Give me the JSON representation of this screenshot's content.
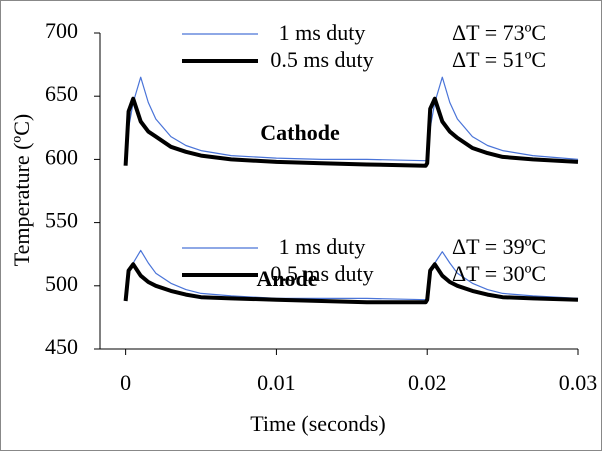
{
  "chart_data": {
    "type": "line",
    "xlabel": "Time (seconds)",
    "ylabel": "Temperature (ºC)",
    "x": [
      0,
      0.0002,
      0.0005,
      0.001,
      0.0015,
      0.002,
      0.003,
      0.004,
      0.005,
      0.007,
      0.01,
      0.013,
      0.016,
      0.0199,
      0.02,
      0.0202,
      0.0205,
      0.021,
      0.0215,
      0.022,
      0.023,
      0.024,
      0.025,
      0.027,
      0.03
    ],
    "series": [
      {
        "name": "1 ms duty",
        "color": "#4a74d8",
        "width": 1.2,
        "values": [
          598,
          625,
          645,
          665,
          645,
          632,
          618,
          611,
          607,
          603,
          601,
          600,
          600,
          599,
          600,
          625,
          645,
          665,
          645,
          632,
          618,
          611,
          607,
          603,
          600
        ]
      },
      {
        "name": "0.5 ms duty",
        "color": "#000000",
        "width": 4,
        "values": [
          595,
          638,
          648,
          630,
          622,
          618,
          610,
          606,
          603,
          600,
          598,
          597,
          596,
          595,
          597,
          640,
          648,
          630,
          622,
          617,
          609,
          605,
          602,
          600,
          598
        ]
      },
      {
        "name": "1 ms duty",
        "color": "#4a74d8",
        "width": 1.2,
        "values": [
          488,
          510,
          518,
          528,
          518,
          510,
          502,
          497,
          494,
          492,
          490,
          490,
          490,
          489,
          490,
          510,
          518,
          527,
          518,
          510,
          502,
          497,
          494,
          492,
          490
        ]
      },
      {
        "name": "0.5 ms duty",
        "color": "#000000",
        "width": 4,
        "values": [
          488,
          512,
          517,
          508,
          503,
          500,
          496,
          493,
          491,
          490,
          489,
          488,
          487,
          487,
          489,
          512,
          517,
          508,
          503,
          500,
          496,
          493,
          491,
          490,
          489
        ]
      }
    ],
    "annotations": [
      "ΔT = 73ºC",
      "ΔT = 51ºC",
      "Cathode",
      "ΔT = 39ºC",
      "ΔT = 30ºC",
      "Anode"
    ],
    "xlim": [
      -0.0017,
      0.03
    ],
    "xticks": [
      0,
      0.01,
      0.02,
      0.03
    ],
    "ylim": [
      450,
      700
    ],
    "yticks": [
      450,
      500,
      550,
      600,
      650,
      700
    ]
  }
}
